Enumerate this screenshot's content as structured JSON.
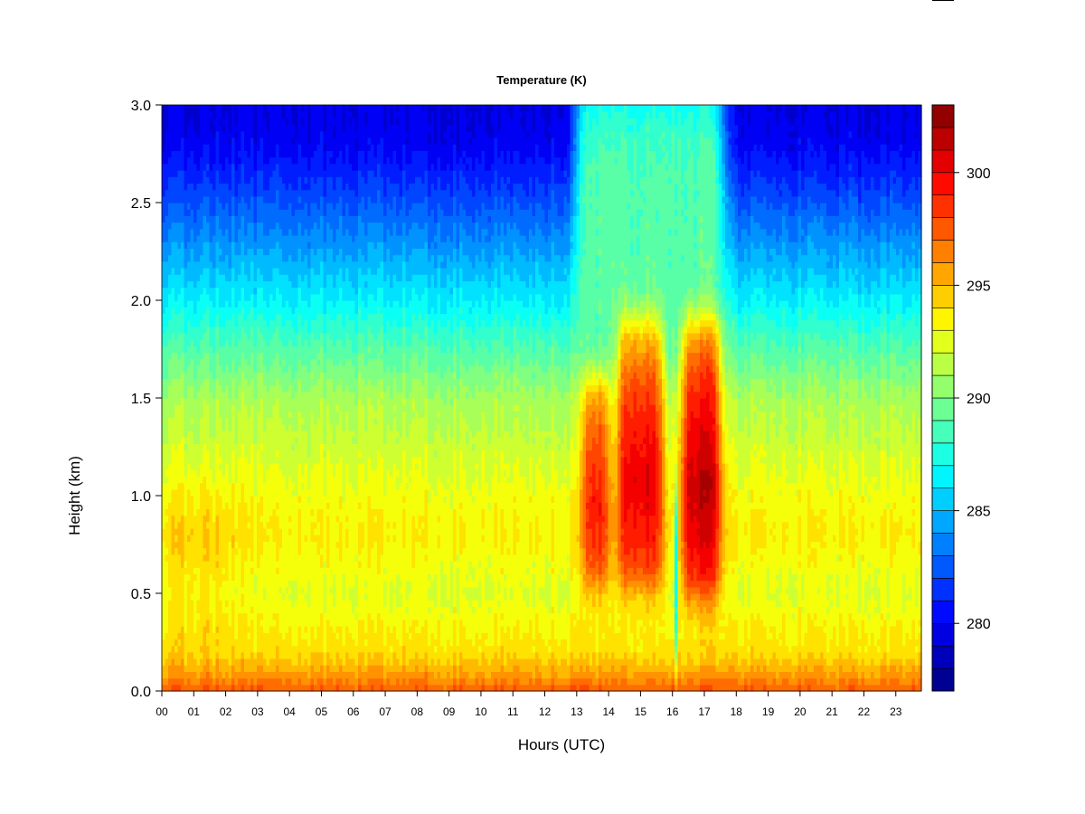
{
  "chart_data": {
    "type": "heatmap",
    "title": "Temperature (K)",
    "xlabel": "Hours (UTC)",
    "ylabel": "Height (km)",
    "x_ticks": [
      "00",
      "01",
      "02",
      "03",
      "04",
      "05",
      "06",
      "07",
      "08",
      "09",
      "10",
      "11",
      "12",
      "13",
      "14",
      "15",
      "16",
      "17",
      "18",
      "19",
      "20",
      "21",
      "22",
      "23"
    ],
    "xlim": [
      0,
      23.8
    ],
    "y_ticks": [
      "0.0",
      "0.5",
      "1.0",
      "1.5",
      "2.0",
      "2.5",
      "3.0"
    ],
    "ylim": [
      0.0,
      3.0
    ],
    "colorbar": {
      "label_ticks": [
        "280",
        "285",
        "290",
        "295",
        "300"
      ],
      "range": [
        277,
        303
      ],
      "step": 1,
      "colormap": "jet"
    },
    "grid": false,
    "background_profile": {
      "heights_km": [
        0.0,
        0.1,
        0.2,
        0.4,
        0.5,
        0.8,
        1.0,
        1.5,
        1.8,
        2.0,
        2.3,
        2.6,
        2.8,
        3.0
      ],
      "temperature_k": [
        297.5,
        295.5,
        294,
        293,
        292.5,
        293.5,
        293,
        291,
        288.5,
        286.5,
        284,
        281.5,
        280,
        279.5
      ]
    },
    "warm_features": [
      {
        "hours": [
          13.2,
          14.0
        ],
        "heights_km": [
          0.5,
          1.6
        ],
        "peak_k": 299.5
      },
      {
        "hours": [
          14.3,
          15.7
        ],
        "heights_km": [
          0.5,
          1.9
        ],
        "peak_k": 300.5
      },
      {
        "hours": [
          16.3,
          17.5
        ],
        "heights_km": [
          0.45,
          1.9
        ],
        "peak_k": 301.5
      }
    ],
    "warm_column": {
      "hours": [
        13.0,
        17.6
      ],
      "peak_k": 289
    },
    "cold_gap": {
      "hour": 16.1,
      "heights_km": [
        0.2,
        1.0
      ],
      "temperature_k": 287
    }
  }
}
